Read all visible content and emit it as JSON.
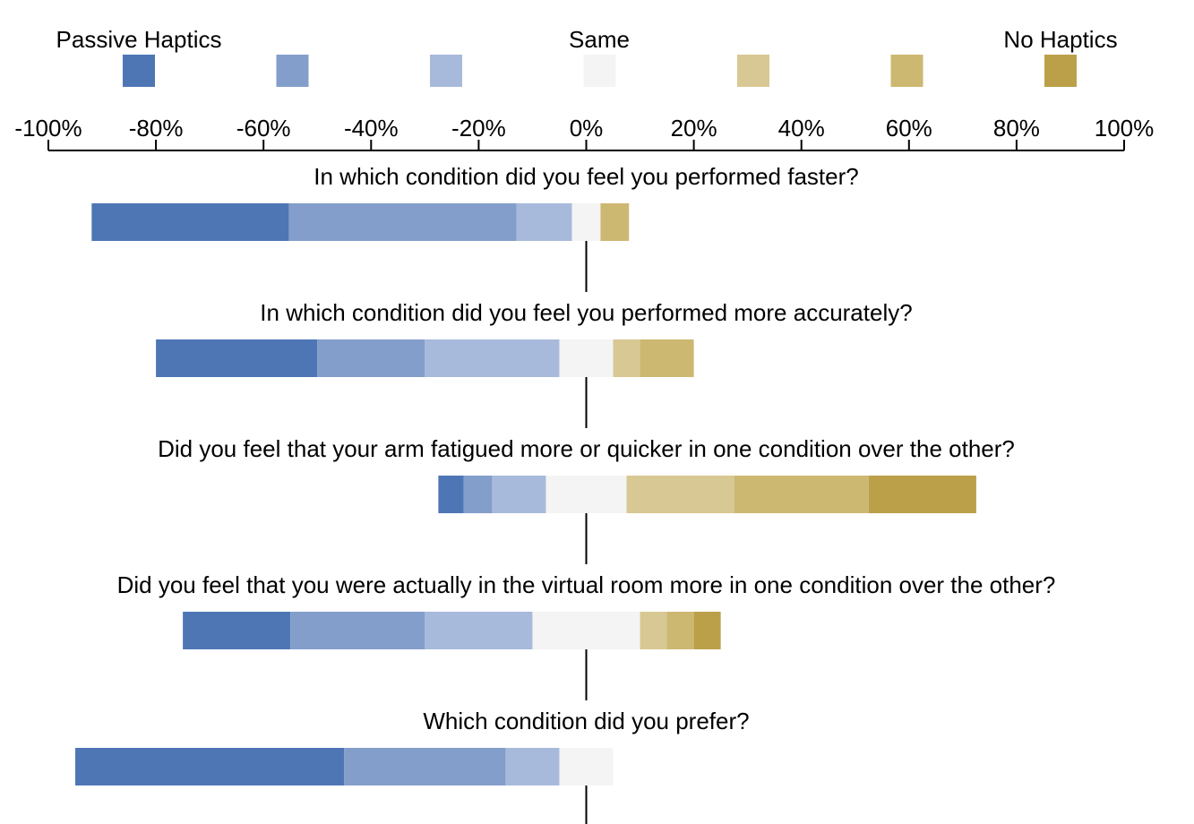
{
  "chart_data": {
    "type": "bar",
    "subtype": "diverging-stacked-likert",
    "legend": {
      "left_label": "Passive Haptics",
      "center_label": "Same",
      "right_label": "No Haptics",
      "placement": "top"
    },
    "colors": [
      "#4e76b4",
      "#839ecb",
      "#a8badb",
      "#f4f4f4",
      "#d8c893",
      "#cdb872",
      "#bba049"
    ],
    "axis": {
      "xlim": [
        -100,
        100
      ],
      "ticks": [
        -100,
        -80,
        -60,
        -40,
        -20,
        0,
        20,
        40,
        60,
        80,
        100
      ],
      "tick_labels": [
        "-100%",
        "-80%",
        "-60%",
        "-40%",
        "-20%",
        "0%",
        "20%",
        "40%",
        "60%",
        "80%",
        "100%"
      ]
    },
    "questions": [
      {
        "label": "In which condition did you feel you performed faster?",
        "values": [
          36.7,
          42.3,
          10.3,
          5.3,
          0,
          5.3,
          0
        ]
      },
      {
        "label": "In which condition did you feel you performed more accurately?",
        "values": [
          30,
          20,
          25,
          10,
          5,
          10,
          0
        ]
      },
      {
        "label": "Did you feel that your arm fatigued more or quicker in one condition over the other?",
        "values": [
          4.7,
          5.3,
          10,
          15,
          20,
          25,
          20
        ]
      },
      {
        "label": "Did you feel that you were actually in the virtual room more in one condition over the other?",
        "values": [
          20,
          25,
          20,
          20,
          5,
          5,
          5
        ]
      },
      {
        "label": "Which condition did you prefer?",
        "values": [
          50,
          30,
          10,
          10,
          0,
          0,
          0
        ]
      }
    ]
  }
}
